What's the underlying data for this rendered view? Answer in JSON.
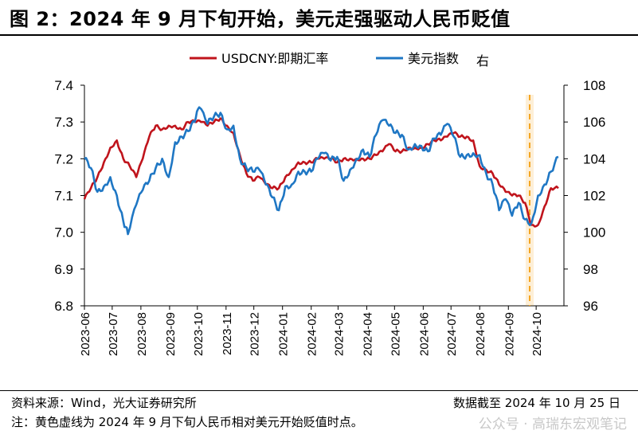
{
  "header": {
    "title": "图 2：2024 年 9 月下旬开始，美元走强驱动人民币贬值"
  },
  "footer": {
    "source": "资料来源：Wind，光大证券研究所",
    "as_of": "数据截至 2024 年 10 月 25 日",
    "note": "注：黄色虚线为 2024 年 9 月下旬人民币相对美元开始贬值时点。",
    "watermark": "公众号 · 高瑞东宏观笔记"
  },
  "colors": {
    "usdcny": "#c0141c",
    "dxy": "#1f77c4",
    "marker": "#f5a623"
  },
  "chart_data": {
    "type": "line",
    "legend_position": "top-center",
    "grid": false,
    "x_labels": [
      "2023-06",
      "2023-07",
      "2023-08",
      "2023-09",
      "2023-10",
      "2023-11",
      "2023-12",
      "2024-01",
      "2024-02",
      "2024-03",
      "2024-04",
      "2024-05",
      "2024-06",
      "2024-07",
      "2024-08",
      "2024-09",
      "2024-10"
    ],
    "x_range": [
      "2023-06-01",
      "2024-10-31"
    ],
    "y_left": {
      "ticks": [
        "6.8",
        "6.9",
        "7.0",
        "7.1",
        "7.2",
        "7.3",
        "7.4"
      ],
      "range": [
        6.8,
        7.4
      ]
    },
    "y_right": {
      "ticks": [
        "96",
        "98",
        "100",
        "102",
        "104",
        "106",
        "108"
      ],
      "range": [
        96,
        108
      ],
      "label": "右"
    },
    "vertical_marker": {
      "date": "2024-09-24",
      "style": "dashed"
    },
    "series": [
      {
        "name": "USDCNY:即期汇率",
        "axis": "left",
        "dates": [
          "2023-06-01",
          "2023-06-08",
          "2023-06-15",
          "2023-06-22",
          "2023-06-29",
          "2023-07-06",
          "2023-07-13",
          "2023-07-20",
          "2023-07-27",
          "2023-08-03",
          "2023-08-10",
          "2023-08-17",
          "2023-08-24",
          "2023-08-31",
          "2023-09-07",
          "2023-09-14",
          "2023-09-21",
          "2023-09-28",
          "2023-10-05",
          "2023-10-12",
          "2023-10-19",
          "2023-10-26",
          "2023-11-02",
          "2023-11-09",
          "2023-11-16",
          "2023-11-23",
          "2023-11-30",
          "2023-12-07",
          "2023-12-14",
          "2023-12-21",
          "2023-12-28",
          "2024-01-04",
          "2024-01-11",
          "2024-01-18",
          "2024-01-25",
          "2024-02-01",
          "2024-02-08",
          "2024-02-15",
          "2024-02-22",
          "2024-02-29",
          "2024-03-07",
          "2024-03-14",
          "2024-03-21",
          "2024-03-28",
          "2024-04-04",
          "2024-04-11",
          "2024-04-18",
          "2024-04-25",
          "2024-05-02",
          "2024-05-09",
          "2024-05-16",
          "2024-05-23",
          "2024-05-30",
          "2024-06-06",
          "2024-06-13",
          "2024-06-20",
          "2024-06-27",
          "2024-07-04",
          "2024-07-11",
          "2024-07-18",
          "2024-07-25",
          "2024-08-01",
          "2024-08-08",
          "2024-08-15",
          "2024-08-22",
          "2024-08-29",
          "2024-09-05",
          "2024-09-12",
          "2024-09-19",
          "2024-09-26",
          "2024-10-03",
          "2024-10-10",
          "2024-10-17",
          "2024-10-25"
        ],
        "values": [
          7.09,
          7.12,
          7.15,
          7.19,
          7.23,
          7.25,
          7.2,
          7.18,
          7.15,
          7.2,
          7.26,
          7.29,
          7.28,
          7.29,
          7.29,
          7.28,
          7.3,
          7.3,
          7.3,
          7.29,
          7.3,
          7.31,
          7.29,
          7.27,
          7.21,
          7.16,
          7.14,
          7.15,
          7.13,
          7.12,
          7.12,
          7.15,
          7.17,
          7.19,
          7.19,
          7.19,
          7.2,
          7.2,
          7.2,
          7.19,
          7.2,
          7.2,
          7.2,
          7.2,
          7.2,
          7.21,
          7.22,
          7.24,
          7.22,
          7.22,
          7.23,
          7.23,
          7.23,
          7.24,
          7.25,
          7.25,
          7.26,
          7.27,
          7.26,
          7.26,
          7.25,
          7.18,
          7.17,
          7.16,
          7.13,
          7.11,
          7.1,
          7.1,
          7.08,
          7.02,
          7.02,
          7.07,
          7.12,
          7.12
        ]
      },
      {
        "name": "美元指数",
        "axis": "right",
        "dates": [
          "2023-06-01",
          "2023-06-08",
          "2023-06-15",
          "2023-06-22",
          "2023-06-29",
          "2023-07-06",
          "2023-07-13",
          "2023-07-18",
          "2023-07-27",
          "2023-08-03",
          "2023-08-10",
          "2023-08-17",
          "2023-08-24",
          "2023-08-31",
          "2023-09-07",
          "2023-09-14",
          "2023-09-21",
          "2023-09-28",
          "2023-10-03",
          "2023-10-12",
          "2023-10-19",
          "2023-10-26",
          "2023-11-02",
          "2023-11-09",
          "2023-11-16",
          "2023-11-23",
          "2023-11-30",
          "2023-12-07",
          "2023-12-14",
          "2023-12-21",
          "2023-12-28",
          "2024-01-04",
          "2024-01-11",
          "2024-01-18",
          "2024-01-25",
          "2024-02-01",
          "2024-02-08",
          "2024-02-15",
          "2024-02-22",
          "2024-02-29",
          "2024-03-07",
          "2024-03-14",
          "2024-03-21",
          "2024-03-28",
          "2024-04-04",
          "2024-04-11",
          "2024-04-18",
          "2024-04-25",
          "2024-05-02",
          "2024-05-09",
          "2024-05-16",
          "2024-05-23",
          "2024-05-30",
          "2024-06-06",
          "2024-06-13",
          "2024-06-20",
          "2024-06-27",
          "2024-07-04",
          "2024-07-11",
          "2024-07-18",
          "2024-07-25",
          "2024-08-01",
          "2024-08-08",
          "2024-08-15",
          "2024-08-22",
          "2024-08-29",
          "2024-09-05",
          "2024-09-12",
          "2024-09-19",
          "2024-09-26",
          "2024-10-03",
          "2024-10-10",
          "2024-10-17",
          "2024-10-25"
        ],
        "values": [
          104.0,
          103.5,
          102.2,
          102.5,
          103.0,
          102.0,
          100.6,
          99.9,
          101.5,
          102.3,
          102.8,
          103.5,
          104.0,
          103.0,
          104.9,
          105.2,
          105.5,
          106.0,
          106.8,
          105.9,
          106.3,
          106.5,
          105.6,
          105.8,
          104.0,
          103.5,
          103.3,
          103.4,
          102.6,
          101.9,
          101.2,
          102.5,
          102.6,
          103.3,
          103.3,
          103.3,
          104.0,
          104.3,
          103.9,
          104.1,
          102.8,
          103.4,
          104.0,
          104.5,
          104.1,
          105.3,
          106.1,
          105.8,
          105.4,
          105.3,
          104.5,
          104.8,
          104.7,
          104.4,
          105.1,
          105.3,
          105.9,
          105.2,
          104.1,
          104.2,
          104.3,
          104.2,
          103.2,
          102.6,
          101.2,
          101.8,
          100.9,
          101.6,
          100.7,
          100.5,
          102.0,
          102.6,
          103.3,
          104.1
        ]
      }
    ]
  }
}
